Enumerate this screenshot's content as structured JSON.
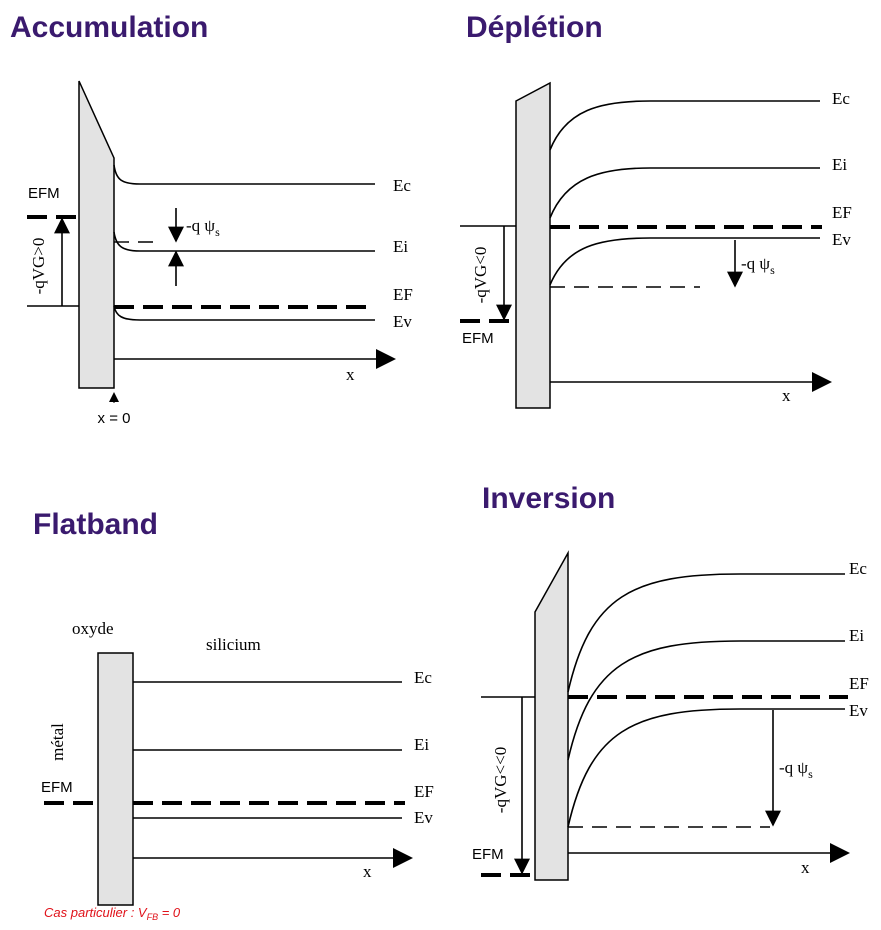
{
  "panels": {
    "accumulation": {
      "title": "Accumulation",
      "ec": "Ec",
      "ei": "Ei",
      "ef": "EF",
      "ev": "Ev",
      "efm": "EFM",
      "vg": "-qVG>0",
      "psi_prefix": "-q ψ",
      "psi_sub": "s",
      "axis": "x",
      "origin": "x = 0"
    },
    "depletion": {
      "title": "Déplétion",
      "ec": "Ec",
      "ei": "Ei",
      "ef": "EF",
      "ev": "Ev",
      "efm": "EFM",
      "vg": "-qVG<0",
      "psi_prefix": "-q ψ",
      "psi_sub": "s",
      "axis": "x"
    },
    "flatband": {
      "title": "Flatband",
      "ec": "Ec",
      "ei": "Ei",
      "ef": "EF",
      "ev": "Ev",
      "efm": "EFM",
      "oxide": "oxyde",
      "metal": "métal",
      "silicon": "silicium",
      "axis": "x",
      "note_prefix": "Cas particulier : V",
      "note_sub": "FB",
      "note_suffix": " = 0"
    },
    "inversion": {
      "title": "Inversion",
      "ec": "Ec",
      "ei": "Ei",
      "ef": "EF",
      "ev": "Ev",
      "efm": "EFM",
      "vg": "-qVG<<0",
      "psi_prefix": "-q ψ",
      "psi_sub": "s",
      "axis": "x"
    }
  }
}
